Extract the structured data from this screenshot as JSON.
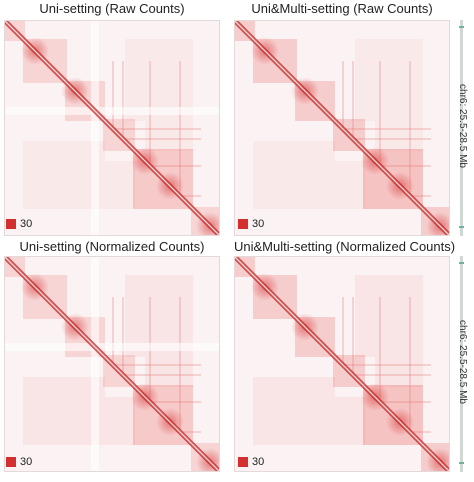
{
  "panels": [
    {
      "title": "Uni-setting (Raw Counts)",
      "legend_value": "30"
    },
    {
      "title": "Uni&Multi-setting (Raw Counts)",
      "legend_value": "30"
    },
    {
      "title": "Uni-setting (Normalized Counts)",
      "legend_value": "30"
    },
    {
      "title": "Uni&Multi-setting (Normalized Counts)",
      "legend_value": "30"
    }
  ],
  "side_labels": [
    "chr6: 25.5-28.5 Mb",
    "chr6: 25.5-28.5 Mb"
  ],
  "colors": {
    "high": "#d32f2f",
    "background": "#fbf3f3"
  }
}
